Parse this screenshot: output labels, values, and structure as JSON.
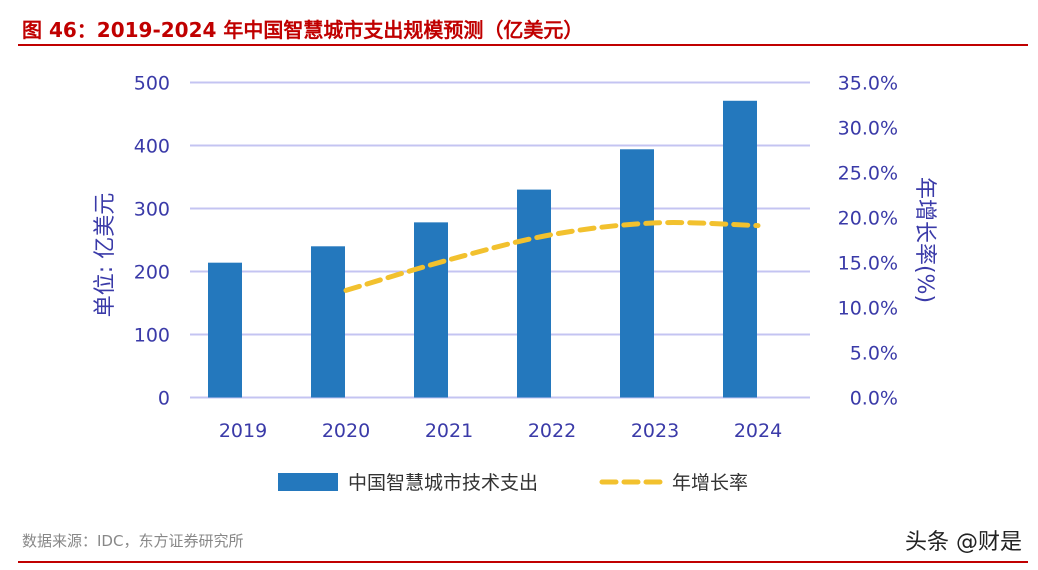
{
  "title": "图 46：2019-2024 年中国智慧城市支出规模预测（亿美元）",
  "source": "数据来源：IDC，东方证券研究所",
  "watermark": "头条 @财是",
  "colors": {
    "bar": "#2478bd",
    "line": "#f2c12e",
    "axis_text": "#3a3aa8",
    "grid": "#c4c4f2",
    "title": "#c00000"
  },
  "chart_data": {
    "type": "bar",
    "categories": [
      "2019",
      "2020",
      "2021",
      "2022",
      "2023",
      "2024"
    ],
    "ylabel": "单位: 亿美元",
    "y2label": "年增长率(%)",
    "ylim": [
      0,
      500
    ],
    "y2lim": [
      0,
      35
    ],
    "yticks": [
      "0",
      "100",
      "200",
      "300",
      "400",
      "500"
    ],
    "y2ticks": [
      "0.0%",
      "5.0%",
      "10.0%",
      "15.0%",
      "20.0%",
      "25.0%",
      "30.0%",
      "35.0%"
    ],
    "grid": true,
    "legend_position": "bottom",
    "series": [
      {
        "name": "中国智慧城市技术支出",
        "type": "bar",
        "axis": "left",
        "values": [
          214,
          240,
          278,
          330,
          394,
          471
        ]
      },
      {
        "name": "年增长率",
        "type": "line",
        "style": "dashed",
        "axis": "right",
        "values": [
          null,
          11.9,
          15.3,
          18.1,
          19.4,
          19.1
        ]
      }
    ]
  }
}
